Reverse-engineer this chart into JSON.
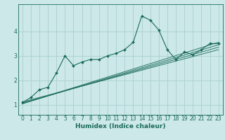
{
  "xlabel": "Humidex (Indice chaleur)",
  "bg_color": "#cce8e8",
  "grid_color": "#aacfcf",
  "line_color": "#1a6b5a",
  "xlim": [
    -0.5,
    23.5
  ],
  "ylim": [
    0.6,
    5.1
  ],
  "yticks": [
    1,
    2,
    3,
    4
  ],
  "xticks": [
    0,
    1,
    2,
    3,
    4,
    5,
    6,
    7,
    8,
    9,
    10,
    11,
    12,
    13,
    14,
    15,
    16,
    17,
    18,
    19,
    20,
    21,
    22,
    23
  ],
  "main_x": [
    0,
    1,
    2,
    3,
    4,
    5,
    6,
    7,
    8,
    9,
    10,
    11,
    12,
    13,
    14,
    15,
    16,
    17,
    18,
    19,
    20,
    21,
    22,
    23
  ],
  "main_y": [
    1.1,
    1.3,
    1.62,
    1.72,
    2.3,
    3.0,
    2.6,
    2.75,
    2.85,
    2.85,
    3.0,
    3.1,
    3.25,
    3.55,
    4.62,
    4.45,
    4.05,
    3.25,
    2.85,
    3.15,
    3.05,
    3.25,
    3.5,
    3.5
  ],
  "band_lines": [
    [
      0,
      23,
      1.05,
      3.55
    ],
    [
      0,
      23,
      1.05,
      3.45
    ],
    [
      0,
      23,
      1.08,
      3.35
    ],
    [
      0,
      23,
      1.12,
      3.25
    ]
  ],
  "xlabel_fontsize": 6.5,
  "tick_fontsize": 5.5
}
